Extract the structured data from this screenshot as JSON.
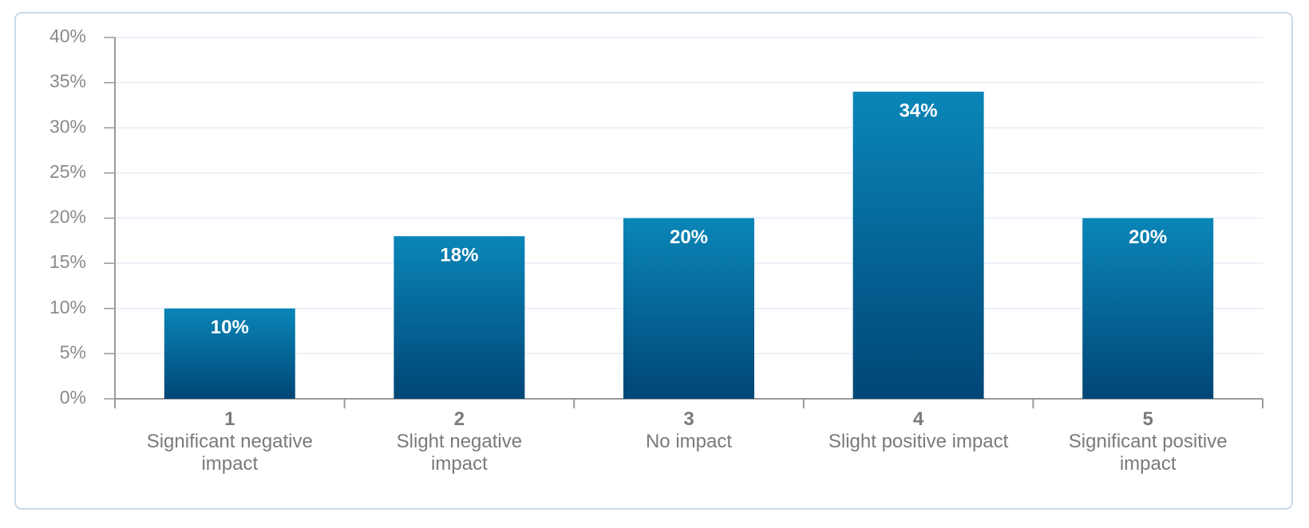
{
  "chart_data": {
    "type": "bar",
    "categories": [
      "1",
      "2",
      "3",
      "4",
      "5"
    ],
    "category_descriptions": [
      "Significant negative impact",
      "Slight negative impact",
      "No impact",
      "Slight positive impact",
      "Significant positive impact"
    ],
    "values": [
      10,
      18,
      20,
      34,
      20
    ],
    "value_labels": [
      "10%",
      "18%",
      "20%",
      "34%",
      "20%"
    ],
    "color": "#0a86b8",
    "ylim": [
      0,
      40
    ],
    "yticks": [
      {
        "value": 0,
        "label": "0%"
      },
      {
        "value": 5,
        "label": "5%"
      },
      {
        "value": 10,
        "label": "10%"
      },
      {
        "value": 15,
        "label": "15%"
      },
      {
        "value": 20,
        "label": "20%"
      },
      {
        "value": 25,
        "label": "25%"
      },
      {
        "value": 30,
        "label": "30%"
      },
      {
        "value": 35,
        "label": "35%"
      },
      {
        "value": 40,
        "label": "40%"
      }
    ],
    "grid": true
  }
}
